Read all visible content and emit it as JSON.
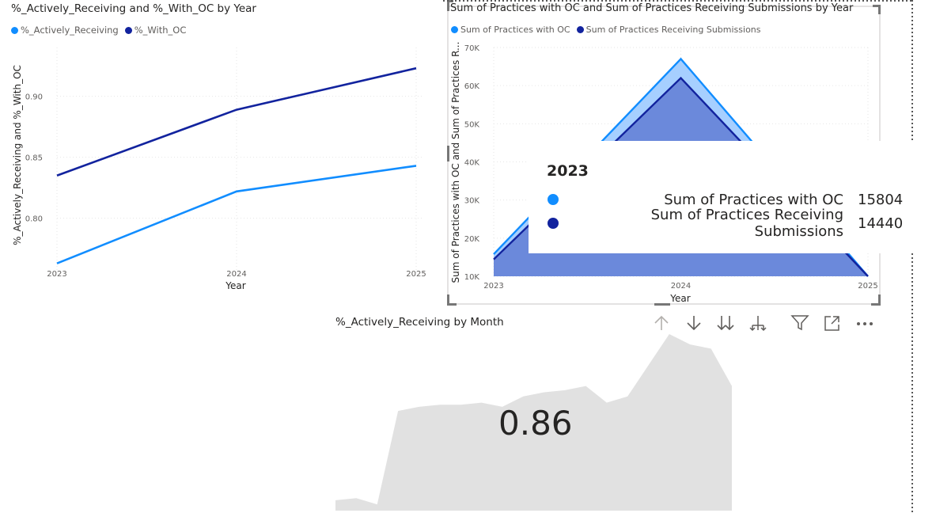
{
  "chart1": {
    "title": "%_Actively_Receiving and %_With_OC by Year",
    "legend": [
      {
        "name": "%_Actively_Receiving",
        "color": "#118DFF"
      },
      {
        "name": "%_With_OC",
        "color": "#12239E"
      }
    ],
    "chart_data": {
      "type": "line",
      "x": [
        "2023",
        "2024",
        "2025"
      ],
      "series": [
        {
          "name": "%_Actively_Receiving",
          "values": [
            0.763,
            0.822,
            0.843
          ],
          "color": "#118DFF"
        },
        {
          "name": "%_With_OC",
          "values": [
            0.835,
            0.889,
            0.923
          ],
          "color": "#12239E"
        }
      ],
      "xlabel": "Year",
      "ylabel": "%_Actively_Receiving and %_With_OC",
      "yticks": [
        "0.80",
        "0.85",
        "0.90"
      ],
      "ylim": [
        0.755,
        0.94
      ],
      "grid": true
    }
  },
  "chart2": {
    "title": "Sum of Practices with OC and Sum of Practices Receiving Submissions by Year",
    "legend": [
      {
        "name": "Sum of Practices with OC",
        "color": "#118DFF"
      },
      {
        "name": "Sum of Practices Receiving Submissions",
        "color": "#12239E"
      }
    ],
    "chart_data": {
      "type": "area",
      "x": [
        "2023",
        "2024",
        "2025"
      ],
      "series": [
        {
          "name": "Sum of Practices with OC",
          "values": [
            15804,
            67000,
            0
          ],
          "color": "#118DFF"
        },
        {
          "name": "Sum of Practices Receiving Submissions",
          "values": [
            14440,
            62000,
            0
          ],
          "color": "#12239E"
        }
      ],
      "xlabel": "Year",
      "ylabel": "Sum of Practices with OC and Sum of Practices R...",
      "yticks": [
        "10K",
        "20K",
        "30K",
        "40K",
        "50K",
        "60K",
        "70K"
      ],
      "ylim": [
        10000,
        70000
      ],
      "grid": true
    },
    "tooltip": {
      "title": "2023",
      "rows": [
        {
          "label": "Sum of Practices with OC",
          "value": "15804",
          "color": "#118DFF"
        },
        {
          "label": "Sum of Practices Receiving Submissions",
          "value": "14440",
          "color": "#12239E"
        }
      ]
    }
  },
  "card": {
    "title": "%_Actively_Receiving by Month",
    "value": "0.86",
    "sparkline": [
      0.805,
      0.806,
      0.803,
      0.848,
      0.85,
      0.851,
      0.851,
      0.852,
      0.85,
      0.855,
      0.857,
      0.858,
      0.86,
      0.852,
      0.855,
      0.87,
      0.885,
      0.88,
      0.878,
      0.86
    ],
    "sparkline_color": "#E1E1E1"
  },
  "toolbar": {
    "icons": [
      "arrow-up-icon",
      "arrow-down-icon",
      "double-arrow-down-icon",
      "expand-hierarchy-icon",
      "filter-icon",
      "focus-mode-icon",
      "more-options-icon"
    ]
  }
}
